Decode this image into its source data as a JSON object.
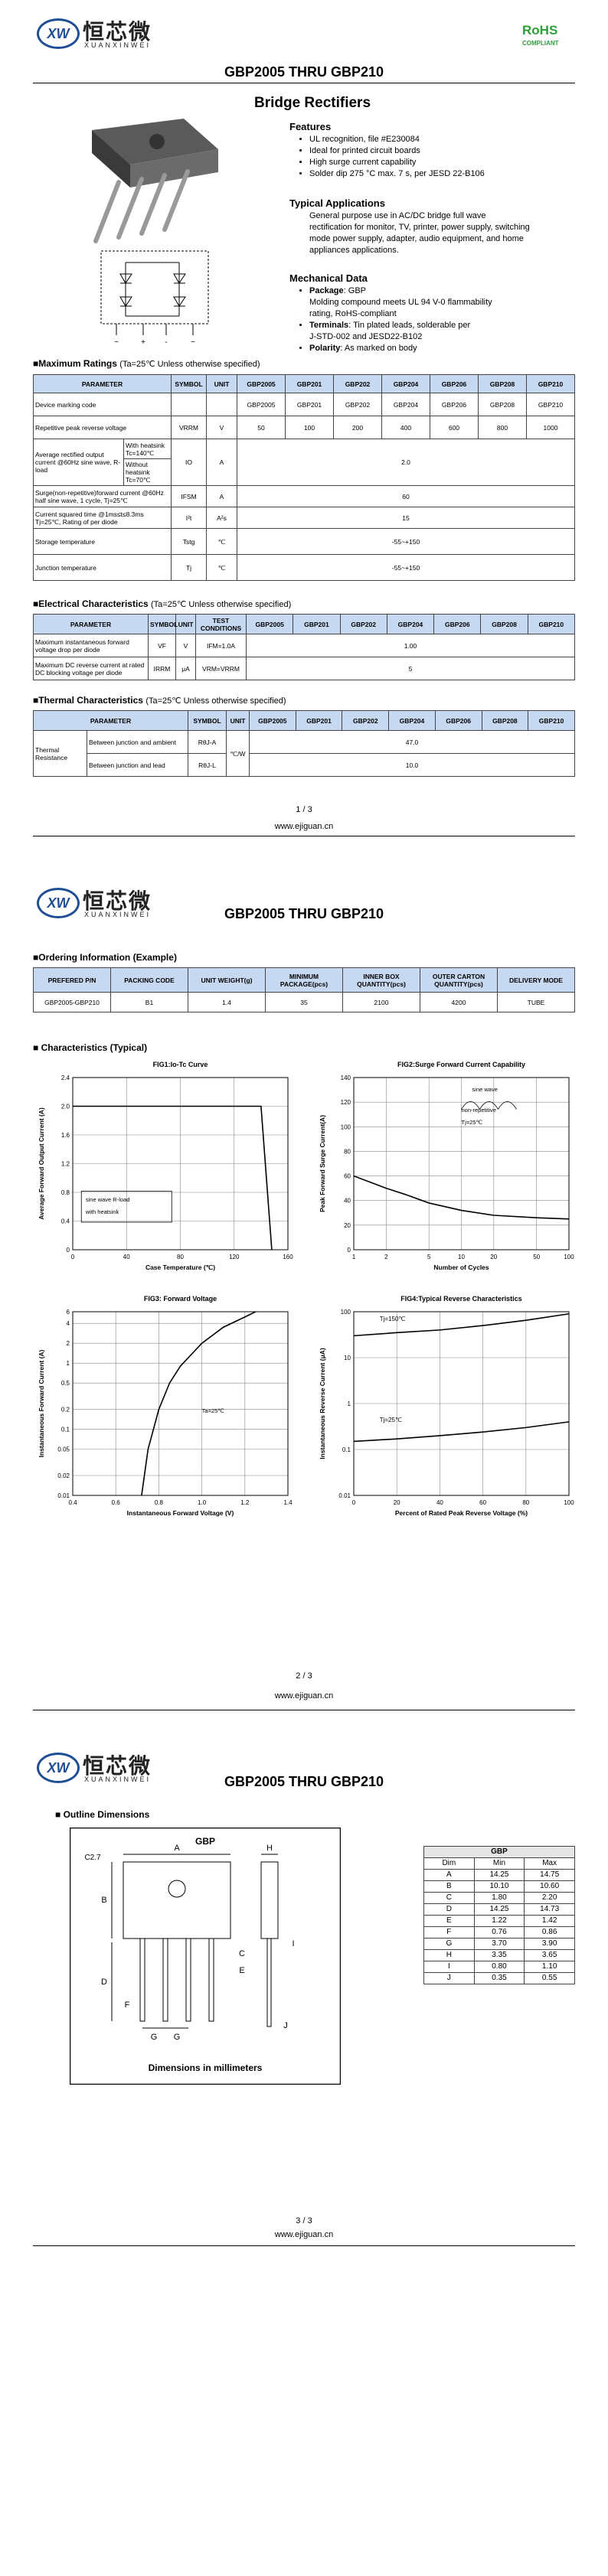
{
  "header": {
    "logo_mark": "XW",
    "brand_cn": "恒芯微",
    "brand_en": "XUANXINWEI",
    "title": "GBP2005 THRU GBP210",
    "rohs": "RoHS",
    "rohs_sub": "COMPLIANT"
  },
  "product": "Bridge Rectifiers",
  "features": {
    "title": "Features",
    "items": [
      "UL recognition, file #E230084",
      "Ideal for printed circuit boards",
      "High surge current capability",
      "Solder dip 275 °C max. 7 s, per JESD 22-B106"
    ]
  },
  "applications": {
    "title": "Typical Applications",
    "lines": [
      "General purpose use in AC/DC bridge full wave",
      "rectification for monitor, TV, printer, power supply, switching",
      "mode power supply, adapter, audio equipment, and home",
      "appliances applications."
    ]
  },
  "mechanical": {
    "title": "Mechanical Data",
    "lines": [
      {
        "bold": "Package",
        "text": ": GBP"
      },
      {
        "text": "Molding compound meets UL 94 V-0 flammability"
      },
      {
        "text": "rating, RoHS-compliant"
      },
      {
        "bold": "Terminals",
        "text": ": Tin plated leads, solderable per"
      },
      {
        "text": "J-STD-002 and JESD22-B102"
      },
      {
        "bold": "Polarity",
        "text": ": As marked on body"
      }
    ]
  },
  "circuit_labels": [
    "~",
    "+",
    "-",
    "~"
  ],
  "max_ratings": {
    "title": "■Maximum Ratings",
    "condition": "(Ta=25℃ Unless otherwise specified)",
    "columns": [
      "PARAMETER",
      "SYMBOL",
      "UNIT",
      "GBP2005",
      "GBP201",
      "GBP202",
      "GBP204",
      "GBP206",
      "GBP208",
      "GBP210"
    ],
    "rows": [
      [
        "Device marking code",
        "GBP2005",
        "GBP201",
        "GBP202",
        "GBP204",
        "GBP206",
        "GBP208",
        "GBP210"
      ],
      [
        "Repetitive peak reverse voltage",
        "VRRM",
        "V",
        "50",
        "100",
        "200",
        "400",
        "600",
        "800",
        "1000"
      ],
      [
        "Average rectified output current @60Hz sine wave, R-load",
        "With heatsink Tc=140℃",
        "IO",
        "A",
        "2.0"
      ],
      [
        "Without heatsink Tc=70℃"
      ],
      [
        "Surge(non-repetitive)forward current @60Hz half sine wave, 1 cycle, Tj=25℃",
        "IFSM",
        "A",
        "60"
      ],
      [
        "Current squared time @1ms≤t≤8.3ms Tj=25℃, Rating of per diode",
        "I²t",
        "A²s",
        "15"
      ],
      [
        "Storage temperature",
        "Tstg",
        "℃",
        "-55~+150"
      ],
      [
        "Junction temperature",
        "Tj",
        "℃",
        "-55~+150"
      ]
    ]
  },
  "electrical": {
    "title": "■Electrical Characteristics",
    "condition": "(Ta=25℃ Unless otherwise specified)",
    "columns": [
      "PARAMETER",
      "SYMBOL",
      "UNIT",
      "TEST CONDITIONS",
      "GBP2005",
      "GBP201",
      "GBP202",
      "GBP204",
      "GBP206",
      "GBP208",
      "GBP210"
    ],
    "rows": [
      [
        "Maximum instantaneous forward voltage drop per diode",
        "VF",
        "V",
        "IFM=1.0A",
        "1.00"
      ],
      [
        "Maximum DC reverse current at rated DC blocking voltage per diode",
        "IRRM",
        "μA",
        "VRM=VRRM",
        "5"
      ]
    ]
  },
  "thermal": {
    "title": "■Thermal Characteristics",
    "condition": "(Ta=25℃ Unless otherwise specified)",
    "columns": [
      "PARAMETER",
      "SYMBOL",
      "UNIT",
      "GBP2005",
      "GBP201",
      "GBP202",
      "GBP204",
      "GBP206",
      "GBP208",
      "GBP210"
    ],
    "rows": [
      [
        "Thermal Resistance",
        "Between junction and ambient",
        "RθJ-A",
        "℃/W",
        "47.0"
      ],
      [
        "Between junction and lead",
        "RθJ-L",
        "10.0"
      ]
    ]
  },
  "ordering": {
    "title": "■Ordering Information (Example)",
    "columns": [
      "PREFERED P/N",
      "PACKING CODE",
      "UNIT WEIGHT(g)",
      "MINIMUM PACKAGE(pcs)",
      "INNER BOX QUANTITY(pcs)",
      "OUTER CARTON QUANTITY(pcs)",
      "DELIVERY MODE"
    ],
    "rows": [
      [
        "GBP2005-GBP210",
        "B1",
        "1.4",
        "35",
        "2100",
        "4200",
        "TUBE"
      ]
    ]
  },
  "characteristics_title": "■ Characteristics (Typical)",
  "charts": [
    {
      "type": "line",
      "title": "FIG1:Io-Tc Curve",
      "xlabel": "Case Temperature (℃)",
      "ylabel": "Average Forward Output Current (A)",
      "xlim": [
        0,
        160
      ],
      "ylim": [
        0,
        2.4
      ],
      "xticks": [
        0,
        40,
        80,
        120,
        160
      ],
      "yticks": [
        0,
        0.4,
        0.8,
        1.2,
        1.6,
        {
          "value": 2,
          "label": "2.0"
        },
        2.4
      ],
      "grid": true,
      "annotations": [
        "sine wave R-load",
        "with heatsink"
      ],
      "series": [
        {
          "color": "#000000",
          "x": [
            0,
            20,
            40,
            60,
            80,
            100,
            120,
            140,
            148
          ],
          "values": [
            2,
            2,
            2,
            2,
            2,
            2,
            2,
            2,
            0
          ]
        }
      ]
    },
    {
      "type": "line",
      "title": "FIG2:Surge Forward Current Capability",
      "xlabel": "Number of Cycles",
      "ylabel": "Peak Forward Surge Current(A)",
      "xlim": [
        1,
        100
      ],
      "xlog": true,
      "ylim": [
        0,
        140
      ],
      "xticks": [
        1,
        2,
        5,
        10,
        20,
        50,
        100
      ],
      "yticks": [
        0,
        20,
        40,
        60,
        80,
        100,
        120,
        140
      ],
      "grid": true,
      "annotations": [
        "sine wave",
        "non-repetitive",
        "Tj=25℃"
      ],
      "series": [
        {
          "color": "#000000",
          "x": [
            1,
            2,
            3,
            5,
            10,
            20,
            50,
            100
          ],
          "values": [
            60,
            50,
            45,
            38,
            32,
            28,
            26,
            25
          ]
        }
      ]
    },
    {
      "type": "line",
      "title": "FIG3: Forward Voltage",
      "xlabel": "Instantaneous Forward Voltage (V)",
      "ylabel": "Instantaneous Forward Current (A)",
      "xlim": [
        0.4,
        1.4
      ],
      "ylim": [
        0.01,
        6
      ],
      "ylog": true,
      "xticks": [
        0.4,
        0.6,
        0.8,
        {
          "value": 1,
          "label": "1.0"
        },
        1.2,
        1.4
      ],
      "yticks": [
        0.01,
        0.02,
        0.05,
        0.1,
        0.2,
        0.5,
        1,
        2,
        4,
        6
      ],
      "grid": true,
      "annotations": [
        "Ta=25℃"
      ],
      "series": [
        {
          "color": "#000000",
          "x": [
            0.72,
            0.75,
            0.8,
            0.85,
            0.9,
            1,
            1.1,
            1.2,
            1.25
          ],
          "values": [
            0.01,
            0.05,
            0.2,
            0.5,
            0.9,
            2,
            3.5,
            5,
            6
          ]
        }
      ]
    },
    {
      "type": "line",
      "title": "FIG4:Typical Reverse Characteristics",
      "xlabel": "Percent of Rated Peak Reverse Voltage (%)",
      "ylabel": "Instantaneous Reverse Current (μA)",
      "xlim": [
        0,
        100
      ],
      "ylim": [
        0.01,
        100
      ],
      "ylog": true,
      "xticks": [
        0,
        20,
        40,
        60,
        80,
        100
      ],
      "yticks": [
        0.01,
        0.1,
        1,
        10,
        100
      ],
      "grid": true,
      "series": [
        {
          "name": "Tj=150℃",
          "color": "#000000",
          "x": [
            0,
            20,
            40,
            60,
            80,
            100
          ],
          "values": [
            30,
            35,
            40,
            50,
            65,
            90
          ]
        },
        {
          "name": "Tj=25℃",
          "color": "#000000",
          "x": [
            0,
            20,
            40,
            60,
            80,
            100
          ],
          "values": [
            0.15,
            0.17,
            0.2,
            0.24,
            0.3,
            0.4
          ]
        }
      ]
    }
  ],
  "outline": {
    "title": "■ Outline Dimensions",
    "package": "GBP",
    "labels": [
      "C2.7",
      "A",
      "B",
      "C",
      "D",
      "E",
      "F",
      "G",
      "G",
      "H",
      "I",
      "J"
    ],
    "caption": "Dimensions in millimeters"
  },
  "dimensions": {
    "package": "GBP",
    "columns": [
      "Dim",
      "Min",
      "Max"
    ],
    "rows": [
      [
        "A",
        "14.25",
        "14.75"
      ],
      [
        "B",
        "10.10",
        "10.60"
      ],
      [
        "C",
        "1.80",
        "2.20"
      ],
      [
        "D",
        "14.25",
        "14.73"
      ],
      [
        "E",
        "1.22",
        "1.42"
      ],
      [
        "F",
        "0.76",
        "0.86"
      ],
      [
        "G",
        "3.70",
        "3.90"
      ],
      [
        "H",
        "3.35",
        "3.65"
      ],
      [
        "I",
        "0.80",
        "1.10"
      ],
      [
        "J",
        "0.35",
        "0.55"
      ]
    ]
  },
  "footer": {
    "pages": [
      "1 / 3",
      "2 / 3",
      "3 / 3"
    ],
    "url": "www.ejiguan.cn"
  }
}
